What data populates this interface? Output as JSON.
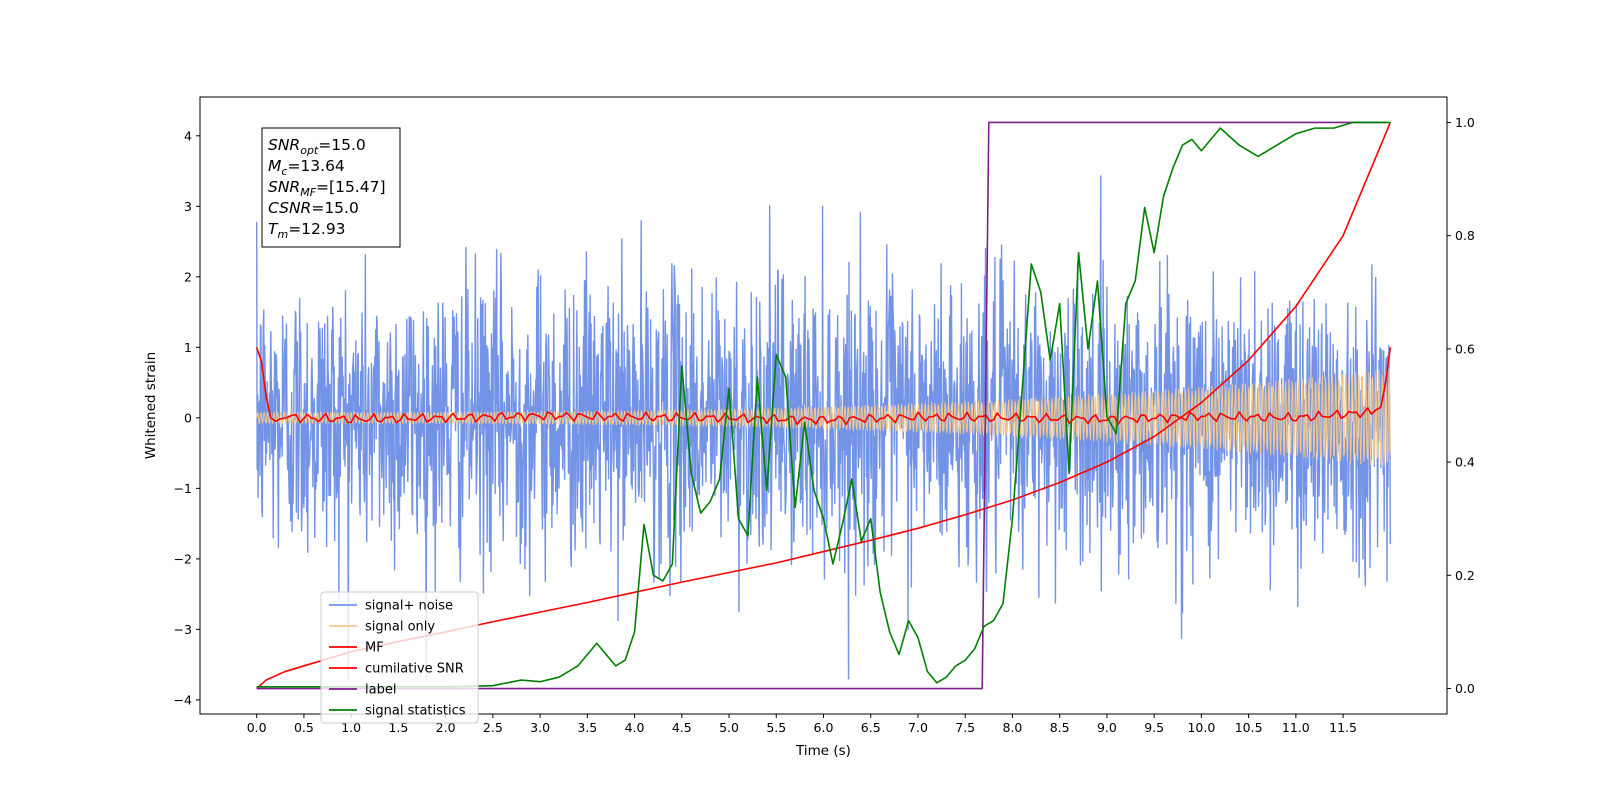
{
  "chart_data": {
    "type": "line",
    "xlabel": "Time (s)",
    "ylabel": "Whitened strain",
    "xlim": [
      -0.6,
      12.6
    ],
    "ylim": [
      -4.2,
      4.55
    ],
    "y2lim": [
      -0.045,
      1.045
    ],
    "x_ticks": [
      "0.0",
      "0.5",
      "1.0",
      "1.5",
      "2.0",
      "2.5",
      "3.0",
      "3.5",
      "4.0",
      "4.5",
      "5.0",
      "5.5",
      "6.0",
      "6.5",
      "7.0",
      "7.5",
      "8.0",
      "8.5",
      "9.0",
      "9.5",
      "10.0",
      "10.5",
      "11.0",
      "11.5"
    ],
    "y_ticks": [
      "−4",
      "−3",
      "−2",
      "−1",
      "0",
      "1",
      "2",
      "3",
      "4"
    ],
    "y2_ticks": [
      "0.0",
      "0.2",
      "0.4",
      "0.6",
      "0.8",
      "1.0"
    ],
    "legend_position": "lower-left",
    "info_box": [
      {
        "base": "SNR",
        "sub": "opt",
        "value": "=15.0"
      },
      {
        "base": "M",
        "sub": "c",
        "value": "=13.64"
      },
      {
        "base": "SNR",
        "sub": "MF",
        "value": "=[15.47]"
      },
      {
        "base": "CSNR",
        "sub": "",
        "value": "=15.0"
      },
      {
        "base": "T",
        "sub": "m",
        "value": "=12.93"
      }
    ],
    "series": [
      {
        "name": "signal+ noise",
        "color": "#7393e6",
        "axis": "left",
        "kind": "noise",
        "t_start": 0.0,
        "t_end": 12.0,
        "std": 1.0
      },
      {
        "name": "signal only",
        "color": "#f5c98a",
        "axis": "left",
        "kind": "chirp",
        "t_start": 0.0,
        "t_end": 12.0,
        "amp_start": 0.08,
        "amp_end": 0.7
      },
      {
        "name": "MF",
        "color": "#ff0000",
        "axis": "left",
        "x": [
          0.0,
          0.05,
          0.1,
          0.15,
          0.2,
          0.3,
          0.5,
          1.0,
          2.0,
          3.0,
          4.0,
          5.0,
          6.0,
          7.0,
          8.0,
          9.0,
          10.0,
          11.0,
          11.8,
          11.9,
          11.95,
          12.0
        ],
        "y": [
          1.0,
          0.8,
          0.3,
          0.0,
          -0.05,
          0.02,
          0.0,
          -0.02,
          0.0,
          0.03,
          0.01,
          0.0,
          -0.03,
          0.01,
          0.0,
          -0.02,
          0.02,
          0.0,
          0.08,
          0.15,
          0.5,
          1.0
        ]
      },
      {
        "name": "cumilative SNR",
        "color": "#ff0000",
        "axis": "right",
        "x": [
          0.0,
          0.1,
          0.3,
          0.6,
          1.0,
          1.5,
          2.0,
          2.5,
          3.0,
          3.5,
          4.0,
          4.5,
          5.0,
          5.5,
          6.0,
          6.5,
          7.0,
          7.5,
          8.0,
          8.5,
          9.0,
          9.5,
          10.0,
          10.5,
          11.0,
          11.5,
          12.0
        ],
        "y": [
          0.0,
          0.015,
          0.03,
          0.045,
          0.065,
          0.083,
          0.1,
          0.118,
          0.135,
          0.152,
          0.17,
          0.188,
          0.205,
          0.222,
          0.242,
          0.262,
          0.283,
          0.307,
          0.333,
          0.364,
          0.4,
          0.445,
          0.505,
          0.58,
          0.675,
          0.8,
          1.0
        ]
      },
      {
        "name": "label",
        "color": "#7b1f8a",
        "axis": "right",
        "x": [
          0.0,
          7.68,
          7.75,
          11.95
        ],
        "y": [
          0.0,
          0.0,
          1.0,
          1.0
        ]
      },
      {
        "name": "signal statistics",
        "color": "#008000",
        "axis": "right",
        "x": [
          0.0,
          1.0,
          2.0,
          2.5,
          2.8,
          3.0,
          3.2,
          3.4,
          3.6,
          3.8,
          3.9,
          4.0,
          4.1,
          4.2,
          4.3,
          4.4,
          4.5,
          4.6,
          4.7,
          4.8,
          4.9,
          5.0,
          5.1,
          5.2,
          5.3,
          5.4,
          5.5,
          5.6,
          5.7,
          5.8,
          5.9,
          6.0,
          6.1,
          6.2,
          6.3,
          6.4,
          6.5,
          6.6,
          6.7,
          6.8,
          6.9,
          7.0,
          7.1,
          7.2,
          7.3,
          7.4,
          7.5,
          7.6,
          7.7,
          7.8,
          7.9,
          8.0,
          8.1,
          8.2,
          8.3,
          8.4,
          8.5,
          8.6,
          8.7,
          8.8,
          8.9,
          9.0,
          9.1,
          9.2,
          9.3,
          9.4,
          9.5,
          9.6,
          9.7,
          9.8,
          9.9,
          10.0,
          10.2,
          10.4,
          10.6,
          10.8,
          11.0,
          11.2,
          11.4,
          11.6,
          11.8,
          12.0
        ],
        "y": [
          0.003,
          0.003,
          0.003,
          0.005,
          0.015,
          0.012,
          0.02,
          0.04,
          0.08,
          0.04,
          0.05,
          0.1,
          0.29,
          0.2,
          0.19,
          0.22,
          0.57,
          0.38,
          0.31,
          0.33,
          0.37,
          0.53,
          0.3,
          0.27,
          0.55,
          0.35,
          0.59,
          0.55,
          0.32,
          0.47,
          0.35,
          0.3,
          0.22,
          0.29,
          0.37,
          0.26,
          0.3,
          0.17,
          0.1,
          0.06,
          0.12,
          0.09,
          0.03,
          0.01,
          0.02,
          0.04,
          0.05,
          0.07,
          0.11,
          0.12,
          0.15,
          0.3,
          0.52,
          0.75,
          0.7,
          0.58,
          0.68,
          0.38,
          0.77,
          0.6,
          0.72,
          0.48,
          0.45,
          0.68,
          0.72,
          0.85,
          0.77,
          0.87,
          0.92,
          0.96,
          0.97,
          0.95,
          0.99,
          0.96,
          0.94,
          0.96,
          0.98,
          0.99,
          0.99,
          1.0,
          1.0,
          1.0
        ]
      }
    ]
  }
}
